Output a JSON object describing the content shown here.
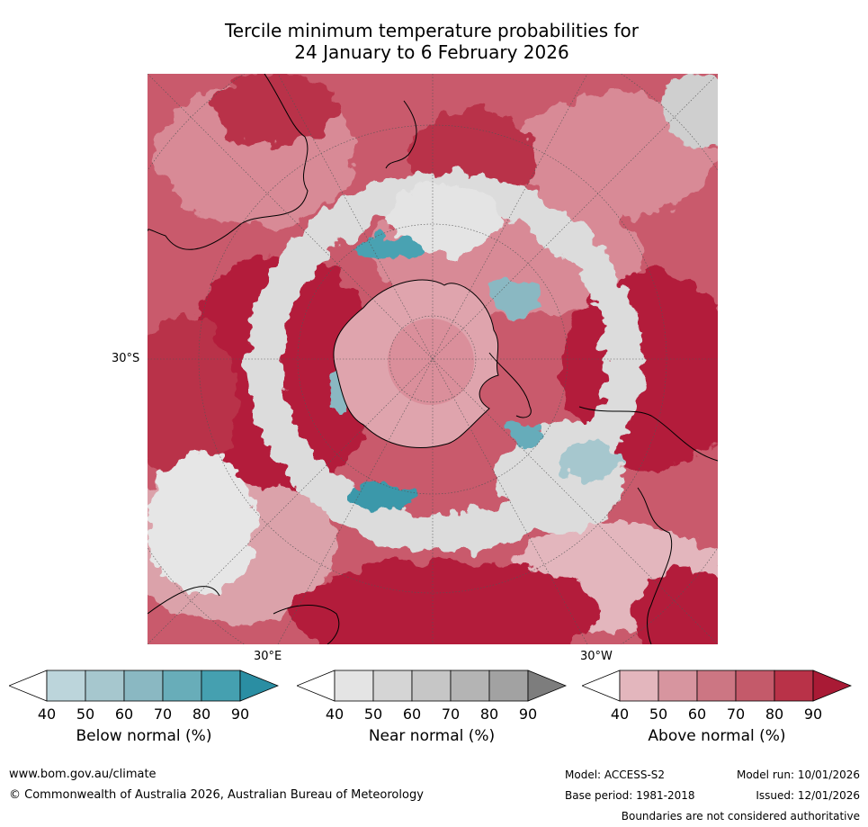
{
  "title": {
    "line1": "Tercile minimum temperature probabilities for",
    "line2": "24 January to 6 February 2026"
  },
  "map": {
    "labels": {
      "lat": "30°S",
      "lon_east": "30°E",
      "lon_west": "30°W"
    }
  },
  "colorbars": [
    {
      "id": "below",
      "title": "Below normal (%)",
      "ticks": [
        "40",
        "50",
        "60",
        "70",
        "80",
        "90"
      ],
      "colors": [
        "#ffffff",
        "#bcd5db",
        "#a6c7ce",
        "#8ab8c2",
        "#68adb9",
        "#45a0b0",
        "#2a8ea3"
      ]
    },
    {
      "id": "near",
      "title": "Near normal (%)",
      "ticks": [
        "40",
        "50",
        "60",
        "70",
        "80",
        "90"
      ],
      "colors": [
        "#ffffff",
        "#e4e4e4",
        "#d5d5d5",
        "#c6c6c6",
        "#b4b4b4",
        "#a2a2a2",
        "#7d7d7d"
      ]
    },
    {
      "id": "above",
      "title": "Above normal (%)",
      "ticks": [
        "40",
        "50",
        "60",
        "70",
        "80",
        "90"
      ],
      "colors": [
        "#ffffff",
        "#e3b6bd",
        "#d7959f",
        "#cc7683",
        "#c45a6a",
        "#b93248",
        "#a91a35"
      ]
    }
  ],
  "footer": {
    "url": "www.bom.gov.au/climate",
    "copyright": "© Commonwealth of Australia 2026, Australian Bureau of Meteorology",
    "model": "Model: ACCESS-S2",
    "model_run": "Model run: 10/01/2026",
    "base_period": "Base period: 1981-2018",
    "issued": "Issued: 12/01/2026",
    "disclaimer": "Boundaries are not considered authoritative"
  }
}
